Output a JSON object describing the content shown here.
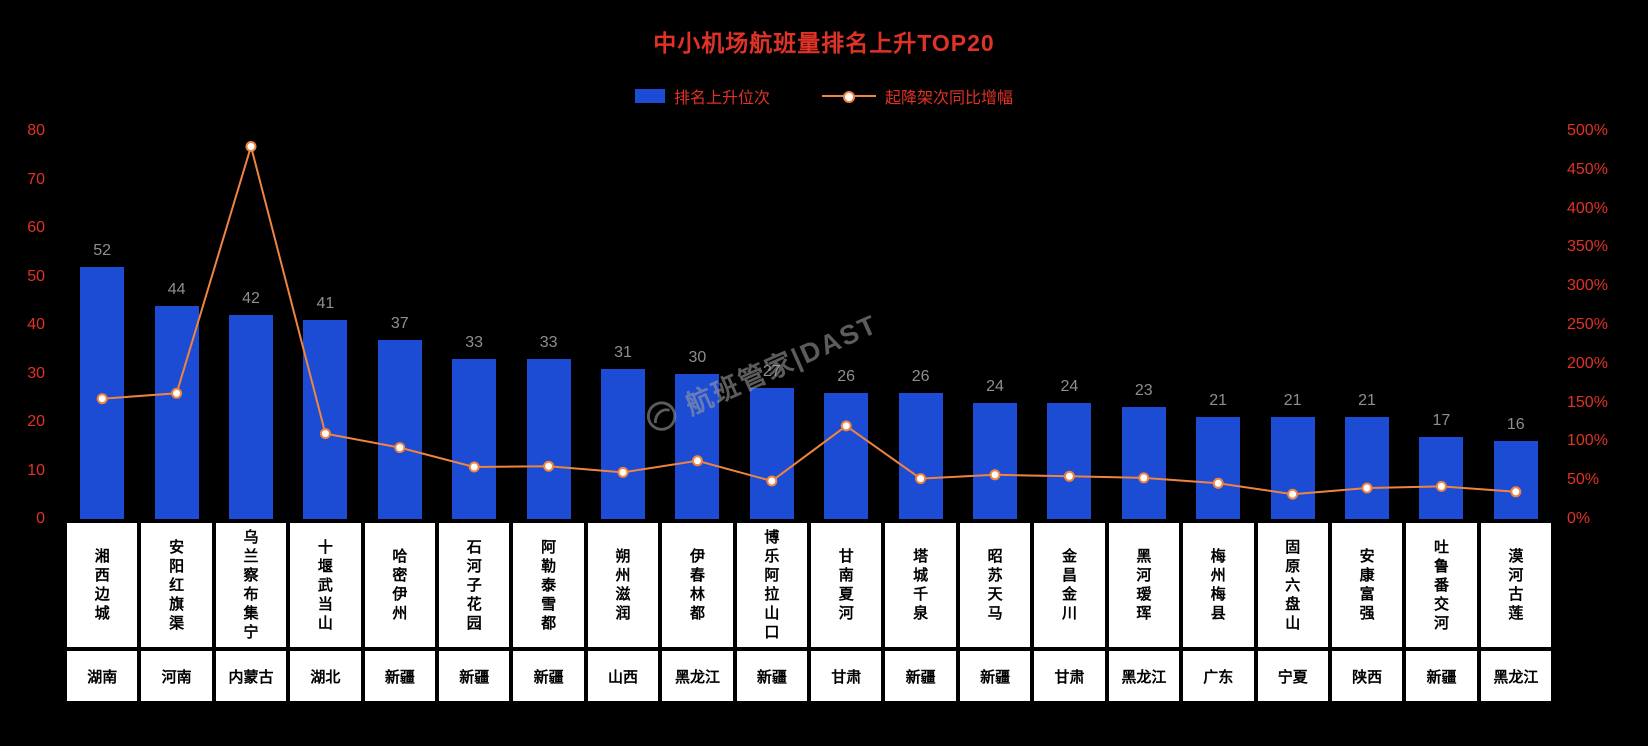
{
  "title": "中小机场航班量排名上升TOP20",
  "legend": {
    "bar": "排名上升位次",
    "line": "起降架次同比增幅"
  },
  "watermark": "航班管家|DAST",
  "colors": {
    "background": "#000000",
    "title": "#e03226",
    "tick": "#e03226",
    "bar": "#1b4cd3",
    "line": "#ef8440",
    "bar_label": "#8e8e8e",
    "cell_bg": "#ffffff",
    "cell_text": "#000000"
  },
  "chart_data": {
    "type": "bar",
    "title": "中小机场航班量排名上升TOP20",
    "categories": [
      "湘西边城",
      "安阳红旗渠",
      "乌兰察布集宁",
      "十堰武当山",
      "哈密伊州",
      "石河子花园",
      "阿勒泰雪都",
      "朔州滋润",
      "伊春林都",
      "博乐阿拉山口",
      "甘南夏河",
      "塔城千泉",
      "昭苏天马",
      "金昌金川",
      "黑河瑷珲",
      "梅州梅县",
      "固原六盘山",
      "安康富强",
      "吐鲁番交河",
      "漠河古莲"
    ],
    "provinces": [
      "湖南",
      "河南",
      "内蒙古",
      "湖北",
      "新疆",
      "新疆",
      "新疆",
      "山西",
      "黑龙江",
      "新疆",
      "甘肃",
      "新疆",
      "新疆",
      "甘肃",
      "黑龙江",
      "广东",
      "宁夏",
      "陕西",
      "新疆",
      "黑龙江"
    ],
    "series": [
      {
        "name": "排名上升位次",
        "type": "bar",
        "axis": "left",
        "values": [
          52,
          44,
          42,
          41,
          37,
          33,
          33,
          31,
          30,
          27,
          26,
          26,
          24,
          24,
          23,
          21,
          21,
          21,
          17,
          16
        ]
      },
      {
        "name": "起降架次同比增幅",
        "type": "line",
        "axis": "right",
        "values_pct": [
          155,
          162,
          480,
          110,
          92,
          67,
          68,
          60,
          75,
          49,
          120,
          52,
          57,
          55,
          53,
          46,
          32,
          40,
          42,
          35
        ]
      }
    ],
    "left_ticks": [
      "80",
      "70",
      "60",
      "50",
      "40",
      "30",
      "20",
      "10",
      "0"
    ],
    "right_ticks": [
      "500%",
      "450%",
      "400%",
      "350%",
      "300%",
      "250%",
      "200%",
      "150%",
      "100%",
      "50%",
      "0%"
    ],
    "left_axis": {
      "min": 0,
      "max": 80,
      "step": 10
    },
    "right_axis": {
      "min": 0,
      "max": 500,
      "step": 50,
      "suffix": "%"
    },
    "legend_position": "top",
    "grid": false
  }
}
